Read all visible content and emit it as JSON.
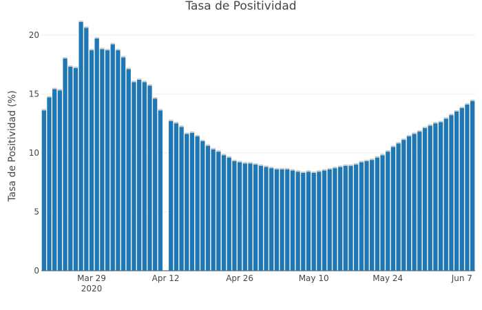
{
  "chart_data": {
    "type": "bar",
    "title": "Tasa de Positividad",
    "ylabel": "Tasa de Positividad (%)",
    "xlabel": "",
    "ylim": [
      0,
      21.8
    ],
    "bar_color": "#1f77b4",
    "grid": true,
    "yticks": [
      {
        "value": 0,
        "label": "0"
      },
      {
        "value": 5,
        "label": "5"
      },
      {
        "value": 10,
        "label": "10"
      },
      {
        "value": 15,
        "label": "15"
      },
      {
        "value": 20,
        "label": "20"
      }
    ],
    "xticks": [
      {
        "date": "2020-03-29",
        "label": "Mar 29",
        "sublabel": "2020"
      },
      {
        "date": "2020-04-12",
        "label": "Apr 12"
      },
      {
        "date": "2020-04-26",
        "label": "Apr 26"
      },
      {
        "date": "2020-05-10",
        "label": "May 10"
      },
      {
        "date": "2020-05-24",
        "label": "May 24"
      },
      {
        "date": "2020-06-07",
        "label": "Jun 7"
      }
    ],
    "x": [
      "2020-03-20",
      "2020-03-21",
      "2020-03-22",
      "2020-03-23",
      "2020-03-24",
      "2020-03-25",
      "2020-03-26",
      "2020-03-27",
      "2020-03-28",
      "2020-03-29",
      "2020-03-30",
      "2020-03-31",
      "2020-04-01",
      "2020-04-02",
      "2020-04-03",
      "2020-04-04",
      "2020-04-05",
      "2020-04-06",
      "2020-04-07",
      "2020-04-08",
      "2020-04-09",
      "2020-04-10",
      "2020-04-11",
      "2020-04-12",
      "2020-04-13",
      "2020-04-14",
      "2020-04-15",
      "2020-04-16",
      "2020-04-17",
      "2020-04-18",
      "2020-04-19",
      "2020-04-20",
      "2020-04-21",
      "2020-04-22",
      "2020-04-23",
      "2020-04-24",
      "2020-04-25",
      "2020-04-26",
      "2020-04-27",
      "2020-04-28",
      "2020-04-29",
      "2020-04-30",
      "2020-05-01",
      "2020-05-02",
      "2020-05-03",
      "2020-05-04",
      "2020-05-05",
      "2020-05-06",
      "2020-05-07",
      "2020-05-08",
      "2020-05-09",
      "2020-05-10",
      "2020-05-11",
      "2020-05-12",
      "2020-05-13",
      "2020-05-14",
      "2020-05-15",
      "2020-05-16",
      "2020-05-17",
      "2020-05-18",
      "2020-05-19",
      "2020-05-20",
      "2020-05-21",
      "2020-05-22",
      "2020-05-23",
      "2020-05-24",
      "2020-05-25",
      "2020-05-26",
      "2020-05-27",
      "2020-05-28",
      "2020-05-29",
      "2020-05-30",
      "2020-05-31",
      "2020-06-01",
      "2020-06-02",
      "2020-06-03",
      "2020-06-04",
      "2020-06-05",
      "2020-06-06",
      "2020-06-07",
      "2020-06-08",
      "2020-06-09"
    ],
    "values": [
      13.6,
      14.7,
      15.4,
      15.3,
      18.0,
      17.3,
      17.2,
      21.1,
      20.6,
      18.7,
      19.7,
      18.8,
      18.7,
      19.2,
      18.7,
      18.1,
      17.1,
      16.0,
      16.2,
      16.0,
      15.7,
      14.6,
      13.6,
      null,
      12.7,
      12.5,
      12.2,
      11.6,
      11.7,
      11.4,
      11.0,
      10.6,
      10.3,
      10.1,
      9.8,
      9.6,
      9.3,
      9.2,
      9.1,
      9.1,
      9.0,
      8.9,
      8.8,
      8.7,
      8.6,
      8.6,
      8.6,
      8.5,
      8.4,
      8.3,
      8.4,
      8.3,
      8.4,
      8.5,
      8.6,
      8.7,
      8.8,
      8.9,
      8.9,
      9.0,
      9.2,
      9.3,
      9.4,
      9.6,
      9.8,
      10.1,
      10.5,
      10.8,
      11.1,
      11.4,
      11.6,
      11.8,
      12.1,
      12.3,
      12.5,
      12.6,
      12.9,
      13.2,
      13.5,
      13.8,
      14.1,
      14.4
    ]
  }
}
